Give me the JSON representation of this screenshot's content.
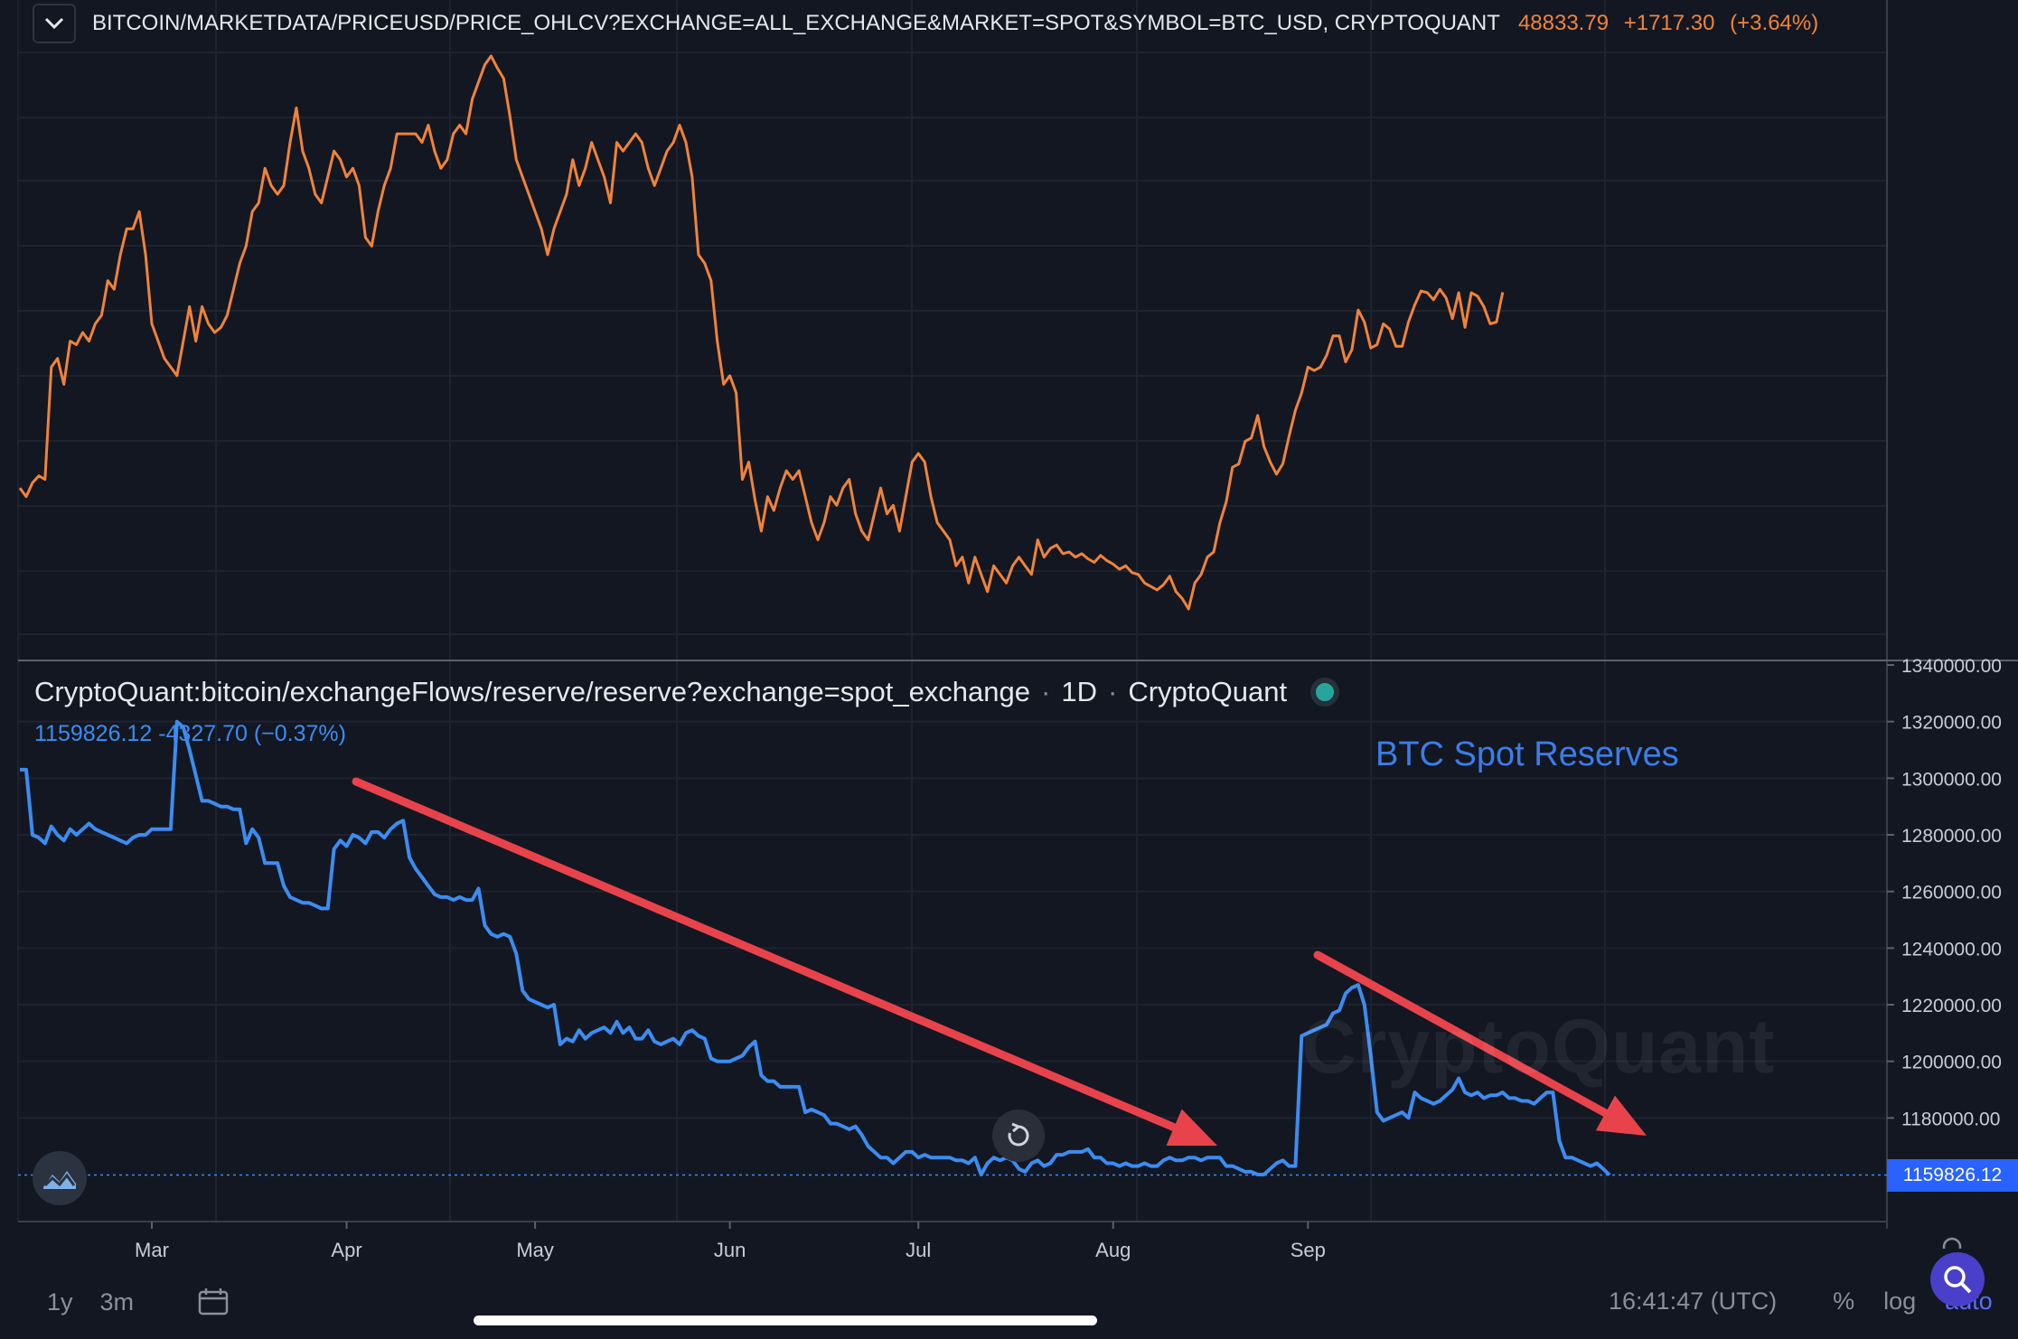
{
  "header": {
    "symbol": "BITCOIN/MARKETDATA/PRICEUSD/PRICE_OHLCV?EXCHANGE=ALL_EXCHANGE&MARKET=SPOT&SYMBOL=BTC_USD, CRYPTOQUANT",
    "last": "48833.79",
    "change": "+1717.30",
    "change_pct": "(+3.64%)"
  },
  "reserve_legend": {
    "symbol": "CryptoQuant:bitcoin/exchangeFlows/reserve/reserve?exchange=spot_exchange",
    "interval": "1D",
    "source": "CryptoQuant",
    "value": "1159826.12",
    "change": "-4327.70",
    "change_pct": "(−0.37%)"
  },
  "annotation": "BTC Spot Reserves",
  "watermark": "CryptoQuant",
  "last_value_tag": "1159826.12",
  "footer": {
    "range_1y": "1y",
    "range_3m": "3m",
    "time": "16:41:47 (UTC)",
    "pct": "%",
    "log": "log",
    "auto": "auto"
  },
  "colors": {
    "background": "#131722",
    "price_line": "#f0833a",
    "reserve_line": "#3c8cf0",
    "arrow": "#e8434b",
    "last_tag": "#2962ff"
  },
  "chart_data": [
    {
      "type": "line",
      "series": [
        {
          "color": "#f0833a",
          "values": [
            37500,
            37000,
            37800,
            38200,
            38000,
            44500,
            45000,
            43500,
            46000,
            45800,
            46500,
            46000,
            47000,
            47500,
            49500,
            49000,
            51000,
            52500,
            52500,
            53500,
            51000,
            47000,
            46000,
            45000,
            44500,
            44000,
            46000,
            48000,
            46000,
            48000,
            47000,
            46500,
            46800,
            47500,
            49000,
            50500,
            51500,
            53500,
            54000,
            56000,
            55000,
            54500,
            55000,
            57500,
            59500,
            57000,
            56000,
            54500,
            54000,
            55500,
            57000,
            56500,
            55500,
            56000,
            55000,
            52000,
            51500,
            53500,
            55000,
            56000,
            58000,
            58000,
            58000,
            58000,
            57500,
            58500,
            57000,
            56000,
            56500,
            58000,
            58500,
            58000,
            60000,
            61000,
            62000,
            62500,
            61800,
            61200,
            59000,
            56500,
            55500,
            54500,
            53500,
            52500,
            51000,
            52500,
            53500,
            54500,
            56500,
            55000,
            56000,
            57500,
            56500,
            55500,
            54000,
            57500,
            57000,
            57500,
            58000,
            57500,
            56000,
            55000,
            56000,
            57000,
            57500,
            58500,
            57500,
            55500,
            51000,
            50500,
            49500,
            46000,
            43500,
            44000,
            43000,
            38000,
            39000,
            36800,
            35000,
            37000,
            36200,
            37500,
            38500,
            38000,
            38500,
            37000,
            35500,
            34500,
            35500,
            37000,
            36500,
            37500,
            38000,
            36000,
            35000,
            34500,
            36000,
            37500,
            36000,
            36500,
            35000,
            37000,
            39000,
            39500,
            39000,
            37000,
            35500,
            35000,
            34500,
            33000,
            33500,
            32000,
            33500,
            32500,
            31500,
            33000,
            32500,
            32000,
            33000,
            33500,
            33000,
            32500,
            34500,
            33500,
            34000,
            34200,
            33700,
            33800,
            33500,
            33700,
            33400,
            33200,
            33600,
            33300,
            33100,
            32800,
            33000,
            32600,
            32500,
            32000,
            31800,
            31600,
            31900,
            32400,
            31500,
            31100,
            30500,
            32000,
            32500,
            33500,
            33800,
            35500,
            36700,
            38700,
            38900,
            40200,
            40400,
            41700,
            39900,
            39000,
            38300,
            38900,
            40500,
            42000,
            43000,
            44500,
            44300,
            44500,
            45200,
            46300,
            46300,
            44800,
            45500,
            47800,
            47100,
            45600,
            45800,
            47000,
            46700,
            45700,
            45700,
            47100,
            48100,
            48900,
            48800,
            48400,
            49000,
            48500,
            47300,
            48800,
            46800,
            48800,
            48600,
            48000,
            47000,
            47100,
            48833.79
          ]
        }
      ]
    },
    {
      "type": "line",
      "x_ticks": [
        "Mar",
        "Apr",
        "May",
        "Jun",
        "Jul",
        "Aug",
        "Sep"
      ],
      "y_ticks": [
        "1340000.00",
        "1320000.00",
        "1300000.00",
        "1280000.00",
        "1260000.00",
        "1240000.00",
        "1220000.00",
        "1200000.00",
        "1180000.00",
        "1160000.00"
      ],
      "series": [
        {
          "color": "#3c8cf0",
          "values": [
            1303000,
            1303000,
            1280000,
            1279000,
            1277000,
            1283000,
            1280000,
            1278000,
            1282000,
            1280000,
            1282000,
            1284000,
            1282000,
            1281000,
            1280000,
            1279000,
            1278000,
            1277000,
            1279000,
            1280000,
            1280000,
            1282000,
            1282000,
            1282000,
            1282000,
            1320000,
            1318000,
            1310000,
            1301000,
            1292000,
            1292000,
            1291000,
            1290000,
            1290000,
            1289000,
            1289000,
            1277000,
            1282000,
            1279000,
            1270000,
            1270000,
            1270000,
            1262000,
            1258000,
            1257000,
            1256000,
            1256000,
            1255000,
            1254000,
            1254000,
            1275000,
            1278000,
            1276000,
            1280000,
            1279000,
            1277000,
            1281000,
            1281000,
            1279000,
            1282000,
            1284000,
            1285000,
            1272000,
            1268000,
            1265000,
            1262000,
            1259000,
            1258000,
            1258000,
            1257000,
            1258000,
            1257000,
            1257000,
            1261000,
            1248000,
            1245000,
            1244000,
            1245000,
            1244000,
            1238000,
            1225000,
            1222000,
            1221000,
            1220000,
            1219000,
            1220000,
            1206000,
            1208000,
            1207000,
            1211000,
            1208000,
            1210000,
            1211000,
            1212000,
            1210000,
            1214000,
            1210000,
            1212000,
            1208000,
            1208000,
            1211000,
            1207000,
            1206000,
            1207000,
            1208000,
            1206000,
            1210000,
            1211000,
            1209000,
            1208000,
            1201000,
            1200000,
            1200000,
            1200000,
            1201000,
            1202000,
            1205000,
            1207000,
            1195000,
            1193000,
            1193000,
            1191000,
            1191000,
            1191000,
            1191000,
            1182000,
            1183000,
            1182000,
            1181000,
            1178000,
            1178000,
            1177000,
            1176000,
            1177000,
            1174000,
            1170000,
            1168000,
            1166000,
            1166000,
            1164000,
            1166000,
            1168000,
            1168000,
            1166000,
            1167000,
            1166000,
            1166000,
            1166000,
            1166000,
            1165000,
            1165000,
            1164000,
            1166000,
            1160000,
            1164000,
            1166000,
            1165000,
            1166000,
            1165000,
            1162000,
            1161000,
            1164000,
            1165000,
            1163000,
            1164000,
            1167000,
            1167000,
            1168000,
            1168000,
            1168000,
            1169000,
            1166000,
            1166000,
            1164000,
            1164000,
            1163000,
            1164000,
            1163000,
            1163000,
            1164000,
            1163000,
            1163000,
            1165000,
            1166000,
            1165000,
            1165000,
            1166000,
            1166000,
            1165000,
            1166000,
            1166000,
            1166000,
            1163000,
            1163000,
            1162000,
            1161000,
            1161000,
            1160000,
            1160000,
            1162000,
            1164000,
            1165000,
            1163000,
            1163000,
            1209000,
            1210000,
            1211000,
            1212000,
            1213000,
            1217000,
            1218000,
            1224000,
            1226000,
            1227000,
            1220000,
            1202000,
            1182000,
            1179000,
            1180000,
            1181000,
            1182000,
            1180000,
            1189000,
            1187000,
            1186000,
            1185000,
            1186000,
            1188000,
            1190000,
            1194000,
            1189000,
            1188000,
            1189000,
            1187000,
            1188000,
            1188000,
            1189000,
            1187000,
            1187000,
            1186000,
            1186000,
            1185000,
            1187000,
            1189000,
            1189000,
            1172000,
            1166000,
            1166000,
            1165000,
            1164000,
            1163000,
            1164000,
            1162000,
            1159826.12
          ]
        }
      ]
    }
  ]
}
